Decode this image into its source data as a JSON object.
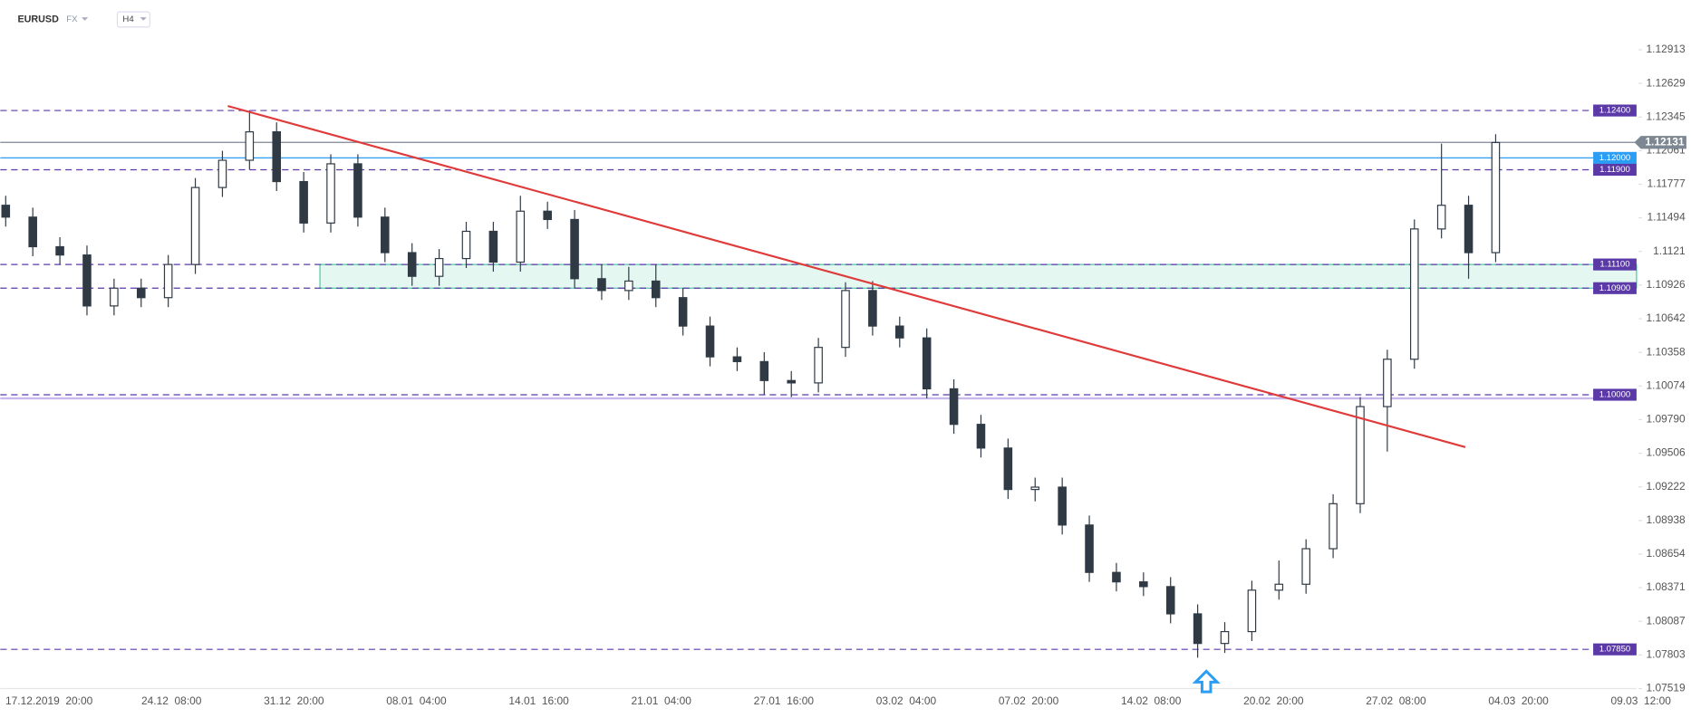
{
  "chart_data": {
    "type": "candlestick",
    "symbol": "EURUSD",
    "market": "FX",
    "timeframe": "H4",
    "up_color": "#ffffff",
    "down_color": "#2f3a45",
    "wick_color": "#2f3a45",
    "ylim": [
      1.07519,
      1.13059
    ],
    "yticks": [
      1.12913,
      1.12629,
      1.12345,
      1.12061,
      1.11777,
      1.11494,
      1.1121,
      1.10926,
      1.10642,
      1.10358,
      1.10074,
      {
        "value": 1.0979,
        "label": "1.09790"
      },
      1.09506,
      1.09222,
      1.08938,
      1.08654,
      1.08371,
      1.08087,
      1.07803,
      1.07519
    ],
    "x_labels": [
      "17.12.2019  20:00",
      "24.12  08:00",
      "31.12  20:00",
      "08.01  04:00",
      "14.01  16:00",
      "21.01  04:00",
      "27.01  16:00",
      "03.02  04:00",
      "07.02  20:00",
      "14.02  08:00",
      "20.02  20:00",
      "27.02  08:00",
      "04.03  20:00",
      "09.03  12:00"
    ],
    "candles": [
      [
        1.116,
        1.1168,
        1.1142,
        1.115
      ],
      [
        1.115,
        1.1158,
        1.1117,
        1.1125
      ],
      [
        1.1125,
        1.1133,
        1.111,
        1.1118
      ],
      [
        1.1118,
        1.1126,
        1.1067,
        1.1075
      ],
      [
        1.1075,
        1.1098,
        1.1067,
        1.109
      ],
      [
        1.109,
        1.1098,
        1.1074,
        1.1082
      ],
      [
        1.1082,
        1.1118,
        1.1074,
        1.111
      ],
      [
        1.111,
        1.1183,
        1.1102,
        1.1175
      ],
      [
        1.1175,
        1.1206,
        1.1167,
        1.1198
      ],
      [
        1.1198,
        1.124,
        1.119,
        1.1222
      ],
      [
        1.1222,
        1.123,
        1.1172,
        1.118
      ],
      [
        1.118,
        1.1188,
        1.1137,
        1.1145
      ],
      [
        1.1145,
        1.1203,
        1.1137,
        1.1195
      ],
      [
        1.1195,
        1.1203,
        1.1142,
        1.115
      ],
      [
        1.115,
        1.1158,
        1.1112,
        1.112
      ],
      [
        1.112,
        1.1128,
        1.1092,
        1.11
      ],
      [
        1.11,
        1.1123,
        1.1092,
        1.1115
      ],
      [
        1.1115,
        1.1146,
        1.1107,
        1.1138
      ],
      [
        1.1138,
        1.1146,
        1.1104,
        1.1112
      ],
      [
        1.1112,
        1.1168,
        1.1104,
        1.1155
      ],
      [
        1.1155,
        1.1163,
        1.114,
        1.1148
      ],
      [
        1.1148,
        1.1156,
        1.109,
        1.1098
      ],
      [
        1.1098,
        1.111,
        1.108,
        1.1088
      ],
      [
        1.1088,
        1.1108,
        1.108,
        1.1096
      ],
      [
        1.1096,
        1.111,
        1.1074,
        1.1082
      ],
      [
        1.1082,
        1.109,
        1.105,
        1.1058
      ],
      [
        1.1058,
        1.1066,
        1.1024,
        1.1032
      ],
      [
        1.1032,
        1.104,
        1.102,
        1.1028
      ],
      [
        1.1028,
        1.1036,
        1.1,
        1.1012
      ],
      [
        1.1012,
        1.102,
        1.0998,
        1.101
      ],
      [
        1.101,
        1.1048,
        1.1002,
        1.104
      ],
      [
        1.104,
        1.1095,
        1.1032,
        1.1088
      ],
      [
        1.1088,
        1.1096,
        1.105,
        1.1058
      ],
      [
        1.1058,
        1.1066,
        1.104,
        1.1048
      ],
      [
        1.1048,
        1.1056,
        1.0997,
        1.1005
      ],
      [
        1.1005,
        1.1013,
        1.0967,
        1.0975
      ],
      [
        1.0975,
        1.0983,
        1.0947,
        1.0955
      ],
      [
        1.0955,
        1.0963,
        1.0912,
        1.092
      ],
      [
        1.092,
        1.093,
        1.091,
        1.0922
      ],
      [
        1.0922,
        1.093,
        1.0882,
        1.089
      ],
      [
        1.089,
        1.0898,
        1.0842,
        1.085
      ],
      [
        1.085,
        1.0858,
        1.0834,
        1.0842
      ],
      [
        1.0842,
        1.085,
        1.083,
        1.0838
      ],
      [
        1.0838,
        1.0846,
        1.0807,
        1.0815
      ],
      [
        1.0815,
        1.0823,
        1.0778,
        1.079
      ],
      [
        1.079,
        1.0808,
        1.0782,
        1.08
      ],
      [
        1.08,
        1.0843,
        1.0792,
        1.0835
      ],
      [
        1.0835,
        1.086,
        1.0827,
        1.084
      ],
      [
        1.084,
        1.0878,
        1.0832,
        1.087
      ],
      [
        1.087,
        1.0916,
        1.0862,
        1.0908
      ],
      [
        1.0908,
        1.0998,
        1.09,
        1.099
      ],
      [
        1.099,
        1.1038,
        1.0952,
        1.103
      ],
      [
        1.103,
        1.1148,
        1.1022,
        1.114
      ],
      [
        1.114,
        1.1212,
        1.1132,
        1.116
      ],
      [
        1.116,
        1.1168,
        1.1098,
        1.112
      ],
      [
        1.112,
        1.122,
        1.1112,
        1.1213
      ]
    ],
    "levels": [
      {
        "value": 1.124,
        "label": "1.12400",
        "color": "#5b3aa8",
        "style": "dashed"
      },
      {
        "value": 1.12,
        "label": "1.12000",
        "color": "#2a9df4",
        "style": "solid"
      },
      {
        "value": 1.119,
        "label": "1.11900",
        "color": "#5b3aa8",
        "style": "dashed"
      },
      {
        "value": 1.111,
        "label": "1.11100",
        "color": "#5b3aa8",
        "style": "dashed"
      },
      {
        "value": 1.109,
        "label": "1.10900",
        "color": "#5b3aa8",
        "style": "dashed"
      },
      {
        "value": 1.1,
        "label": "1.10000",
        "color": "#5b3aa8",
        "style": "dashed"
      },
      {
        "value": 1.0785,
        "label": "1.07850",
        "color": "#5b3aa8",
        "style": "dashed"
      }
    ],
    "support_line": {
      "value": 1.0997,
      "color": "#c9b8ee"
    },
    "zone": {
      "low": 1.109,
      "high": 1.111,
      "color": "#4cc9a0"
    },
    "current_price": {
      "value": 1.12131,
      "label": "1.12131",
      "color": "#7d8791"
    },
    "trendline": {
      "start": 1.12438,
      "end": 1.09558,
      "color": "#e03b3b"
    }
  }
}
